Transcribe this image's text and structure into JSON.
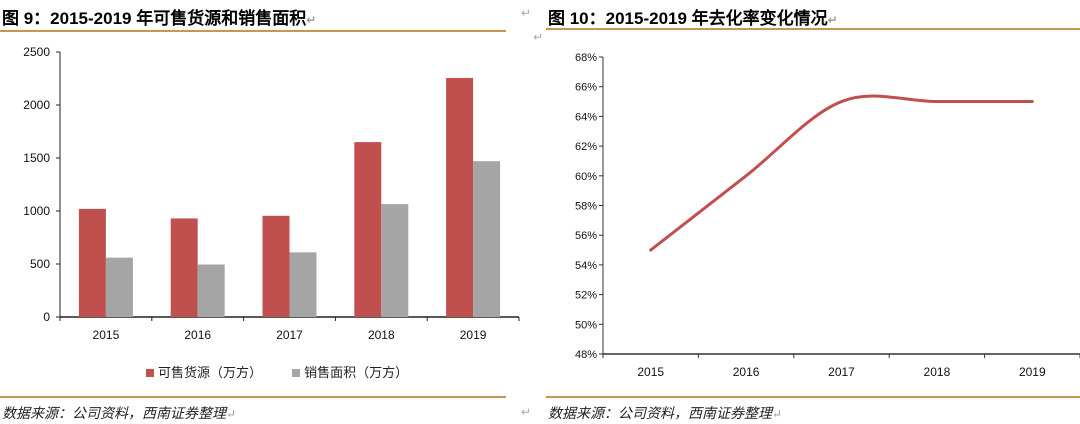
{
  "left_figure": {
    "title": "图 9：2015-2019 年可售货源和销售面积",
    "source": "数据来源：公司资料，西南证券整理",
    "legend": [
      {
        "label": "可售货源（万方）",
        "color": "#c0504d"
      },
      {
        "label": "销售面积（万方）",
        "color": "#a5a5a5"
      }
    ]
  },
  "right_figure": {
    "title": "图 10：2015-2019 年去化率变化情况",
    "source": "数据来源：公司资料，西南证券整理"
  },
  "paragraph_mark": "↵",
  "chart_data": [
    {
      "type": "bar",
      "title": "2015-2019 年可售货源和销售面积",
      "categories": [
        "2015",
        "2016",
        "2017",
        "2018",
        "2019"
      ],
      "series": [
        {
          "name": "可售货源（万方）",
          "color": "#c0504d",
          "values": [
            1020,
            930,
            955,
            1650,
            2255
          ]
        },
        {
          "name": "销售面积（万方）",
          "color": "#a5a5a5",
          "values": [
            560,
            495,
            610,
            1065,
            1470
          ]
        }
      ],
      "xlabel": "",
      "ylabel": "",
      "ylim": [
        0,
        2500
      ],
      "yticks": [
        0,
        500,
        1000,
        1500,
        2000,
        2500
      ],
      "grid": false,
      "legend_position": "bottom"
    },
    {
      "type": "line",
      "title": "2015-2019 年去化率变化情况",
      "categories": [
        "2015",
        "2016",
        "2017",
        "2018",
        "2019"
      ],
      "series": [
        {
          "name": "去化率",
          "color": "#c0504d",
          "values": [
            55,
            60,
            65,
            65,
            65
          ],
          "unit": "%",
          "smooth": true
        }
      ],
      "xlabel": "",
      "ylabel": "",
      "ylim": [
        48,
        68
      ],
      "yticks": [
        "48%",
        "50%",
        "52%",
        "54%",
        "56%",
        "58%",
        "60%",
        "62%",
        "64%",
        "66%",
        "68%"
      ],
      "grid": false,
      "legend_position": "none"
    }
  ]
}
